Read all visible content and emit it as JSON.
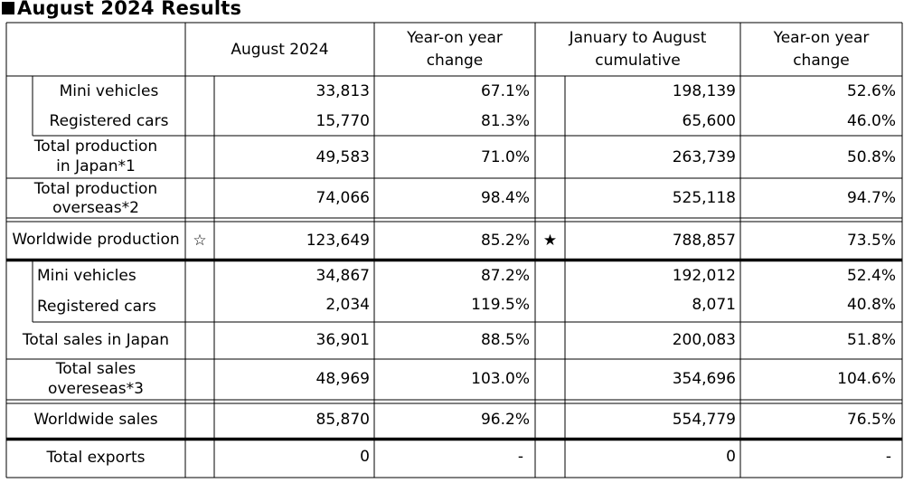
{
  "title": "August 2024 Results",
  "header": {
    "col_month": "August 2024",
    "col_month_yoy_l1": "Year-on year",
    "col_month_yoy_l2": "change",
    "col_cum_l1": "January to August",
    "col_cum_l2": "cumulative",
    "col_cum_yoy_l1": "Year-on year",
    "col_cum_yoy_l2": "change"
  },
  "rows": {
    "mini_prod": {
      "label": "Mini vehicles",
      "month": "33,813",
      "month_yoy": "67.1%",
      "cum": "198,139",
      "cum_yoy": "52.6%"
    },
    "reg_prod": {
      "label": "Registered cars",
      "month": "15,770",
      "month_yoy": "81.3%",
      "cum": "65,600",
      "cum_yoy": "46.0%"
    },
    "total_prod_japan": {
      "label_l1": "Total production",
      "label_l2": "in Japan*1",
      "month": "49,583",
      "month_yoy": "71.0%",
      "cum": "263,739",
      "cum_yoy": "50.8%"
    },
    "total_prod_overseas": {
      "label_l1": "Total production",
      "label_l2": "overseas*2",
      "month": "74,066",
      "month_yoy": "98.4%",
      "cum": "525,118",
      "cum_yoy": "94.7%"
    },
    "worldwide_prod": {
      "label": "Worldwide production",
      "mark_month": "☆",
      "month": "123,649",
      "month_yoy": "85.2%",
      "mark_cum": "★",
      "cum": "788,857",
      "cum_yoy": "73.5%"
    },
    "mini_sales": {
      "label": "Mini vehicles",
      "month": "34,867",
      "month_yoy": "87.2%",
      "cum": "192,012",
      "cum_yoy": "52.4%"
    },
    "reg_sales": {
      "label": "Registered cars",
      "month": "2,034",
      "month_yoy": "119.5%",
      "cum": "8,071",
      "cum_yoy": "40.8%"
    },
    "total_sales_japan": {
      "label": "Total sales in Japan",
      "month": "36,901",
      "month_yoy": "88.5%",
      "cum": "200,083",
      "cum_yoy": "51.8%"
    },
    "total_sales_overseas": {
      "label_l1": "Total sales",
      "label_l2": "overeseas*3",
      "month": "48,969",
      "month_yoy": "103.0%",
      "cum": "354,696",
      "cum_yoy": "104.6%"
    },
    "worldwide_sales": {
      "label": "Worldwide sales",
      "month": "85,870",
      "month_yoy": "96.2%",
      "cum": "554,779",
      "cum_yoy": "76.5%"
    },
    "total_exports": {
      "label": "Total exports",
      "month": "0",
      "month_yoy": "-",
      "cum": "0",
      "cum_yoy": "-"
    }
  }
}
